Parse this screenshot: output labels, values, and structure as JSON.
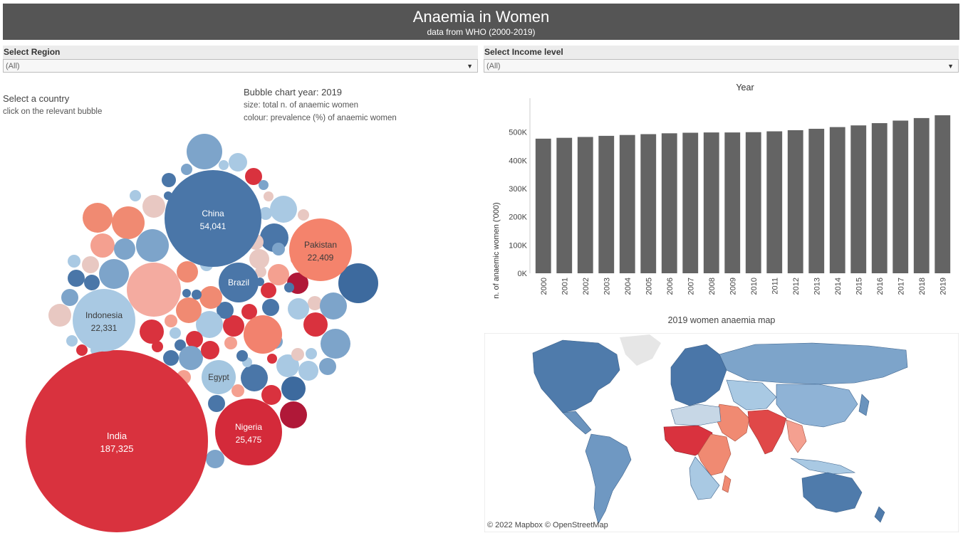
{
  "header": {
    "title": "Anaemia in Women",
    "subtitle": "data from WHO (2000-2019)"
  },
  "filters": {
    "region": {
      "label": "Select Region",
      "value": "(All)"
    },
    "income": {
      "label": "Select Income level",
      "value": "(All)"
    }
  },
  "instructions": {
    "heading": "Select a country",
    "hint": "click on the relevant bubble"
  },
  "bubble_legend": {
    "title": "Bubble chart year: 2019",
    "size_note": "size: total n. of anaemic women",
    "colour_note": "colour: prevalence (%) of anaemic women"
  },
  "map": {
    "title": "2019 women anaemia map",
    "credit": "© 2022 Mapbox  © OpenStreetMap"
  },
  "colors": {
    "bar": "#646464",
    "high_prevalence": "#d9323e",
    "mid_high": "#f08a72",
    "neutral": "#e8c8c2",
    "mid_low": "#a9c9e3",
    "low_prevalence": "#4a76a8"
  },
  "chart_data": [
    {
      "type": "bar",
      "title": "Year",
      "ylabel": "n. of anaemic women ('000)",
      "categories": [
        "2000",
        "2001",
        "2002",
        "2003",
        "2004",
        "2005",
        "2006",
        "2007",
        "2008",
        "2009",
        "2010",
        "2011",
        "2012",
        "2013",
        "2014",
        "2015",
        "2016",
        "2017",
        "2018",
        "2019"
      ],
      "values": [
        477,
        480,
        483,
        487,
        490,
        493,
        496,
        498,
        499,
        499,
        500,
        503,
        507,
        512,
        518,
        524,
        532,
        541,
        550,
        560
      ],
      "yticks": [
        "0K",
        "100K",
        "200K",
        "300K",
        "400K",
        "500K"
      ],
      "ylim": [
        0,
        580
      ]
    },
    {
      "type": "bubble",
      "labeled": [
        {
          "name": "India",
          "value": "187,325",
          "color": "#d9323e"
        },
        {
          "name": "China",
          "value": "54,041",
          "color": "#4a76a8"
        },
        {
          "name": "Nigeria",
          "value": "25,475",
          "color": "#d42a3a"
        },
        {
          "name": "Indonesia",
          "value": "22,331",
          "color": "#a9c9e3"
        },
        {
          "name": "Pakistan",
          "value": "22,409",
          "color": "#f4836c"
        },
        {
          "name": "Brazil",
          "value": "",
          "color": "#4a76a8"
        },
        {
          "name": "Egypt",
          "value": "",
          "color": "#a4c6e0"
        }
      ]
    }
  ]
}
